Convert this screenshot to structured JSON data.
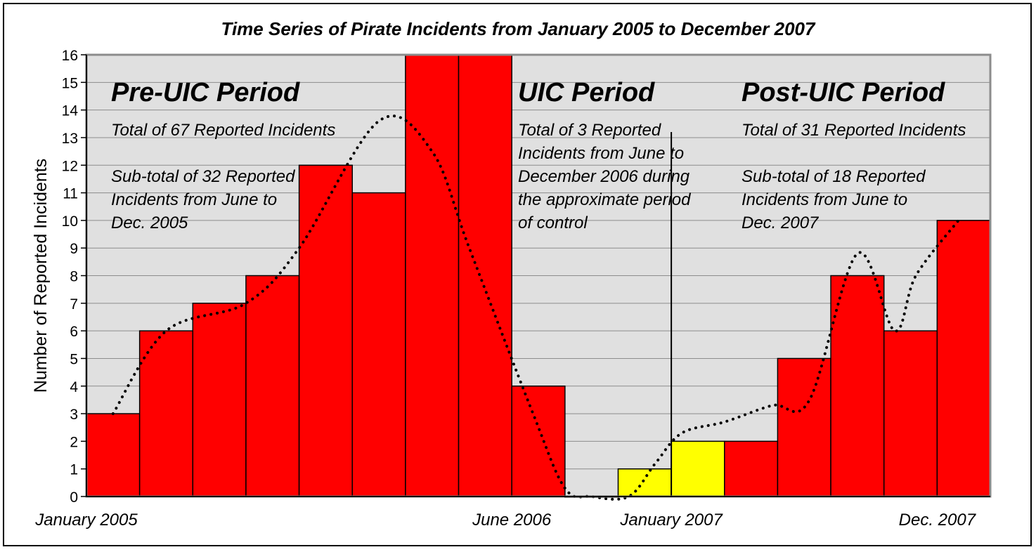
{
  "chart_data": {
    "type": "bar",
    "title": "Time Series of Pirate Incidents from January 2005 to December 2007",
    "ylabel": "Number of Reported Incidents",
    "xlabel": "",
    "ylim": [
      0,
      16
    ],
    "yticks": [
      0,
      1,
      2,
      3,
      4,
      5,
      6,
      7,
      8,
      9,
      10,
      11,
      12,
      13,
      14,
      15,
      16
    ],
    "x_labels": [
      {
        "text": "January 2005",
        "at": 0
      },
      {
        "text": "June 2006",
        "at": 8
      },
      {
        "text": "January 2007",
        "at": 11
      },
      {
        "text": "Dec. 2007",
        "at": 16
      }
    ],
    "bars": [
      {
        "value": 3,
        "color": "#ff0000"
      },
      {
        "value": 6,
        "color": "#ff0000"
      },
      {
        "value": 7,
        "color": "#ff0000"
      },
      {
        "value": 8,
        "color": "#ff0000"
      },
      {
        "value": 12,
        "color": "#ff0000"
      },
      {
        "value": 11,
        "color": "#ff0000"
      },
      {
        "value": 16,
        "color": "#ff0000"
      },
      {
        "value": 16,
        "color": "#ff0000"
      },
      {
        "value": 4,
        "color": "#ff0000"
      },
      {
        "value": 0,
        "color": "#ff0000"
      },
      {
        "value": 1,
        "color": "#ffff00"
      },
      {
        "value": 2,
        "color": "#ffff00"
      },
      {
        "value": 2,
        "color": "#ff0000"
      },
      {
        "value": 5,
        "color": "#ff0000"
      },
      {
        "value": 8,
        "color": "#ff0000"
      },
      {
        "value": 6,
        "color": "#ff0000"
      },
      {
        "value": 10,
        "color": "#ff0000"
      }
    ],
    "trend_line": [
      [
        0.5,
        3
      ],
      [
        1.5,
        6
      ],
      [
        3,
        7
      ],
      [
        4,
        9
      ],
      [
        5.5,
        13.6
      ],
      [
        6.5,
        12.5
      ],
      [
        7.2,
        9
      ],
      [
        8.4,
        3
      ],
      [
        9,
        0.3
      ],
      [
        9.5,
        0
      ],
      [
        10.2,
        0
      ],
      [
        10.7,
        1.2
      ],
      [
        11.2,
        2.3
      ],
      [
        12,
        2.7
      ],
      [
        12.9,
        3.3
      ],
      [
        13.6,
        3.5
      ],
      [
        14.5,
        8.8
      ],
      [
        15.2,
        6
      ],
      [
        15.6,
        8
      ],
      [
        16.4,
        10
      ]
    ],
    "period_divider_at": 11,
    "grid": true,
    "legend": "none"
  },
  "periods": [
    {
      "heading": "Pre-UIC Period",
      "lines": [
        "Total of 67 Reported Incidents",
        "",
        "Sub-total of 32 Reported",
        "Incidents from June to",
        "Dec. 2005"
      ]
    },
    {
      "heading": "UIC Period",
      "lines": [
        "Total of 3 Reported",
        "Incidents from June to",
        "December 2006 during",
        "the approximate period",
        "of control"
      ]
    },
    {
      "heading": "Post-UIC Period",
      "lines": [
        "Total of 31 Reported Incidents",
        "",
        "Sub-total of 18 Reported",
        "Incidents from June to",
        "Dec. 2007"
      ]
    }
  ]
}
